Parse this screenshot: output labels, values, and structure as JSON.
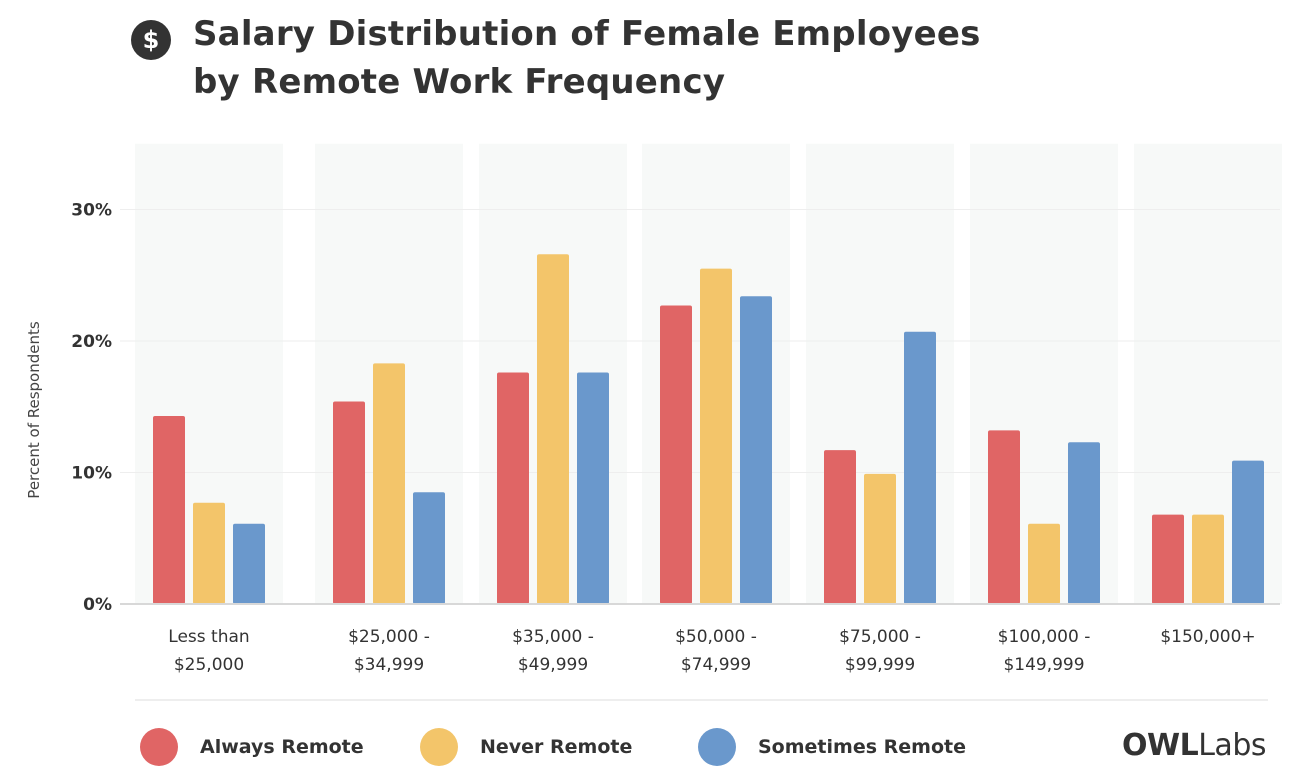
{
  "header": {
    "icon_symbol": "$",
    "title_line1": "Salary Distribution of Female Employees",
    "title_line2": "by Remote Work Frequency"
  },
  "logo": {
    "owl": "OWL",
    "labs": "Labs"
  },
  "chart_data": {
    "type": "bar",
    "title": "Salary Distribution of Female Employees by Remote Work Frequency",
    "xlabel": "",
    "ylabel": "Percent of Respondents",
    "ylim": [
      0,
      35
    ],
    "y_ticks": [
      {
        "value": 0,
        "label": "0%"
      },
      {
        "value": 10,
        "label": "10%"
      },
      {
        "value": 20,
        "label": "20%"
      },
      {
        "value": 30,
        "label": "30%"
      }
    ],
    "grid": true,
    "legend_position": "bottom",
    "categories": [
      [
        "Less than",
        "$25,000"
      ],
      [
        "$25,000 -",
        "$34,999"
      ],
      [
        "$35,000 -",
        "$49,999"
      ],
      [
        "$50,000 -",
        "$74,999"
      ],
      [
        "$75,000 -",
        "$99,999"
      ],
      [
        "$100,000 -",
        "$149,999"
      ],
      [
        "$150,000+"
      ]
    ],
    "series": [
      {
        "name": "Always Remote",
        "color": "#E06565",
        "values": [
          14.3,
          15.4,
          17.6,
          22.7,
          11.7,
          13.2,
          6.8
        ]
      },
      {
        "name": "Never Remote",
        "color": "#F3C56A",
        "values": [
          7.7,
          18.3,
          26.6,
          25.5,
          9.9,
          6.1,
          6.8
        ]
      },
      {
        "name": "Sometimes Remote",
        "color": "#6A98CC",
        "values": [
          6.1,
          8.5,
          17.6,
          23.4,
          20.7,
          12.3,
          10.9
        ]
      }
    ],
    "colors": {
      "column_band": "#F7F9F8",
      "gridline": "#EEEEEE",
      "baseline": "#D8D8D8",
      "tick_text": "#333333"
    }
  }
}
